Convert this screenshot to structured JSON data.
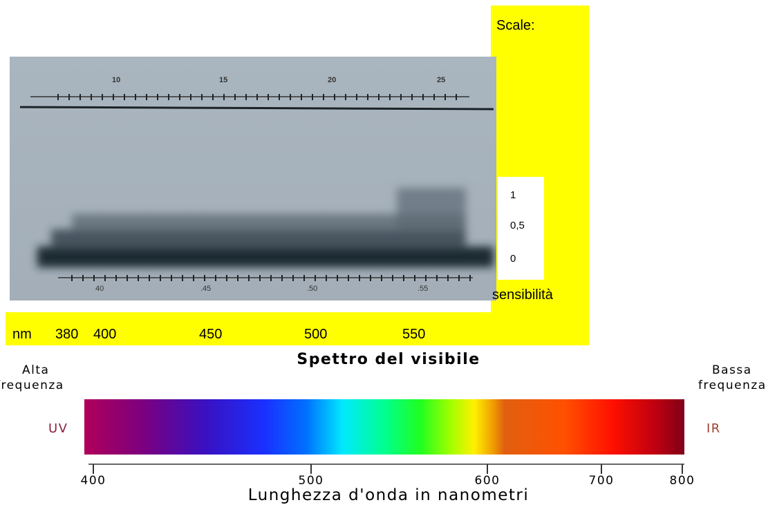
{
  "photo_panel": {
    "scale_label": "Scale:",
    "scale_values": [
      "1",
      "0,5",
      "0"
    ],
    "axis_label": "sensibilità",
    "unit": "nm",
    "wavelengths": [
      "380",
      "400",
      "450",
      "500",
      "550"
    ],
    "top_ruler": [
      "10",
      "15",
      "20",
      "25"
    ],
    "bottom_ruler": [
      "40",
      ".45",
      ".50",
      ".55"
    ]
  },
  "spectrum": {
    "title": "Spettro del visibile",
    "left_label": [
      "Alta",
      "frequenza"
    ],
    "right_label": [
      "Bassa",
      "frequenza"
    ],
    "left_band": "UV",
    "right_band": "IR",
    "ticks": [
      "400",
      "500",
      "600",
      "700",
      "800"
    ],
    "axis_title": "Lunghezza d'onda in nanometri"
  }
}
